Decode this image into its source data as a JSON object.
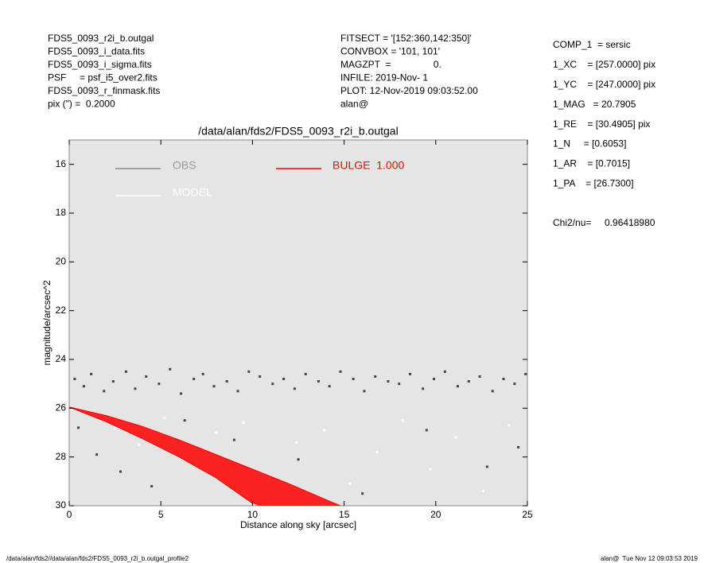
{
  "chart_data": {
    "type": "scatter",
    "title": "/data/alan/fds2/FDS5_0093_r2i_b.outgal",
    "x_label": "Distance along sky [arcsec]",
    "y_label": "magnitude/arcsec^2",
    "xlim": [
      0,
      25
    ],
    "xticks": [
      0,
      5,
      10,
      15,
      20,
      25
    ],
    "ylim": [
      30,
      15
    ],
    "yticks": [
      16,
      18,
      20,
      22,
      24,
      26,
      28,
      30
    ],
    "header_left": [
      "FDS5_0093_r2i_b.outgal",
      "FDS5_0093_i_data.fits",
      "FDS5_0093_i_sigma.fits",
      "PSF     = psf_i5_over2.fits",
      "FDS5_0093_r_finmask.fits",
      "pix (\") =  0.2000"
    ],
    "header_middle": [
      "FITSECT = '[152:360,142:350]'",
      "CONVBOX = '101, 101'",
      "MAGZPT  =                0.",
      "INFILE: 2019-Nov- 1",
      "PLOT: 12-Nov-2019 09:03:52.00",
      "alan@"
    ],
    "header_right": [
      "COMP_1  = sersic",
      "1_XC    = [257.0000] pix",
      "1_YC    = [247.0000] pix",
      "1_MAG   = 20.7905",
      "1_RE    = [30.4905] pix",
      "1_N     = [0.6053]",
      "1_AR    = [0.7015]",
      "1_PA    = [26.7300]",
      "Chi2/nu=     0.96418980"
    ],
    "footer_left": "/data/alan/fds2//data/alan/fds2/FDS5_0093_r2i_b.outgal_profile2",
    "footer_right": "alan@  Tue Nov 12 09:03:53 2019",
    "series": [
      {
        "name": "OBS",
        "color": "#444444",
        "x": [
          0.3,
          0.8,
          1.2,
          1.9,
          2.4,
          3.1,
          3.6,
          4.2,
          4.9,
          5.5,
          6.1,
          6.8,
          7.3,
          7.9,
          8.6,
          9.2,
          9.8,
          10.4,
          11.1,
          11.7,
          12.3,
          12.9,
          13.6,
          14.2,
          14.8,
          15.5,
          16.1,
          16.7,
          17.4,
          18.0,
          18.6,
          19.3,
          19.9,
          20.5,
          21.2,
          21.8,
          22.4,
          23.1,
          23.7,
          24.3,
          24.9,
          0.5,
          1.5,
          2.8,
          4.5,
          6.3,
          9.0,
          12.5,
          16.0,
          19.5,
          22.8,
          24.5
        ],
        "values": [
          24.8,
          25.1,
          24.6,
          25.3,
          24.9,
          24.5,
          25.2,
          24.7,
          25.0,
          24.4,
          25.4,
          24.8,
          24.6,
          25.1,
          24.9,
          25.3,
          24.5,
          24.7,
          25.0,
          24.8,
          25.2,
          24.6,
          24.9,
          25.1,
          24.5,
          24.8,
          25.3,
          24.7,
          24.9,
          25.0,
          24.6,
          25.2,
          24.8,
          24.5,
          25.1,
          24.9,
          24.7,
          25.3,
          24.8,
          25.0,
          24.6,
          26.8,
          27.9,
          28.6,
          29.2,
          26.5,
          27.3,
          28.1,
          29.5,
          26.9,
          28.4,
          27.6
        ]
      },
      {
        "name": "MODEL",
        "color": "#ffffff",
        "x": [
          1.0,
          2.5,
          3.8,
          5.2,
          6.6,
          8.0,
          9.5,
          11.0,
          12.4,
          13.9,
          15.3,
          16.8,
          18.2,
          19.7,
          21.1,
          22.6,
          24.0
        ],
        "values": [
          26.2,
          26.8,
          27.5,
          26.4,
          28.2,
          27.0,
          26.6,
          28.8,
          27.4,
          26.9,
          29.1,
          27.8,
          26.5,
          28.5,
          27.2,
          29.4,
          26.7
        ]
      },
      {
        "name": "BULGE  1.000",
        "color": "#ff0000",
        "x": [
          0,
          2,
          4,
          6,
          8,
          10,
          12,
          14,
          14.8
        ],
        "values": [
          25.95,
          26.3,
          26.75,
          27.3,
          27.9,
          28.5,
          29.1,
          29.75,
          30
        ],
        "values_low": [
          25.95,
          26.55,
          27.25,
          28.0,
          28.85,
          29.9,
          null,
          null,
          null
        ]
      }
    ]
  }
}
